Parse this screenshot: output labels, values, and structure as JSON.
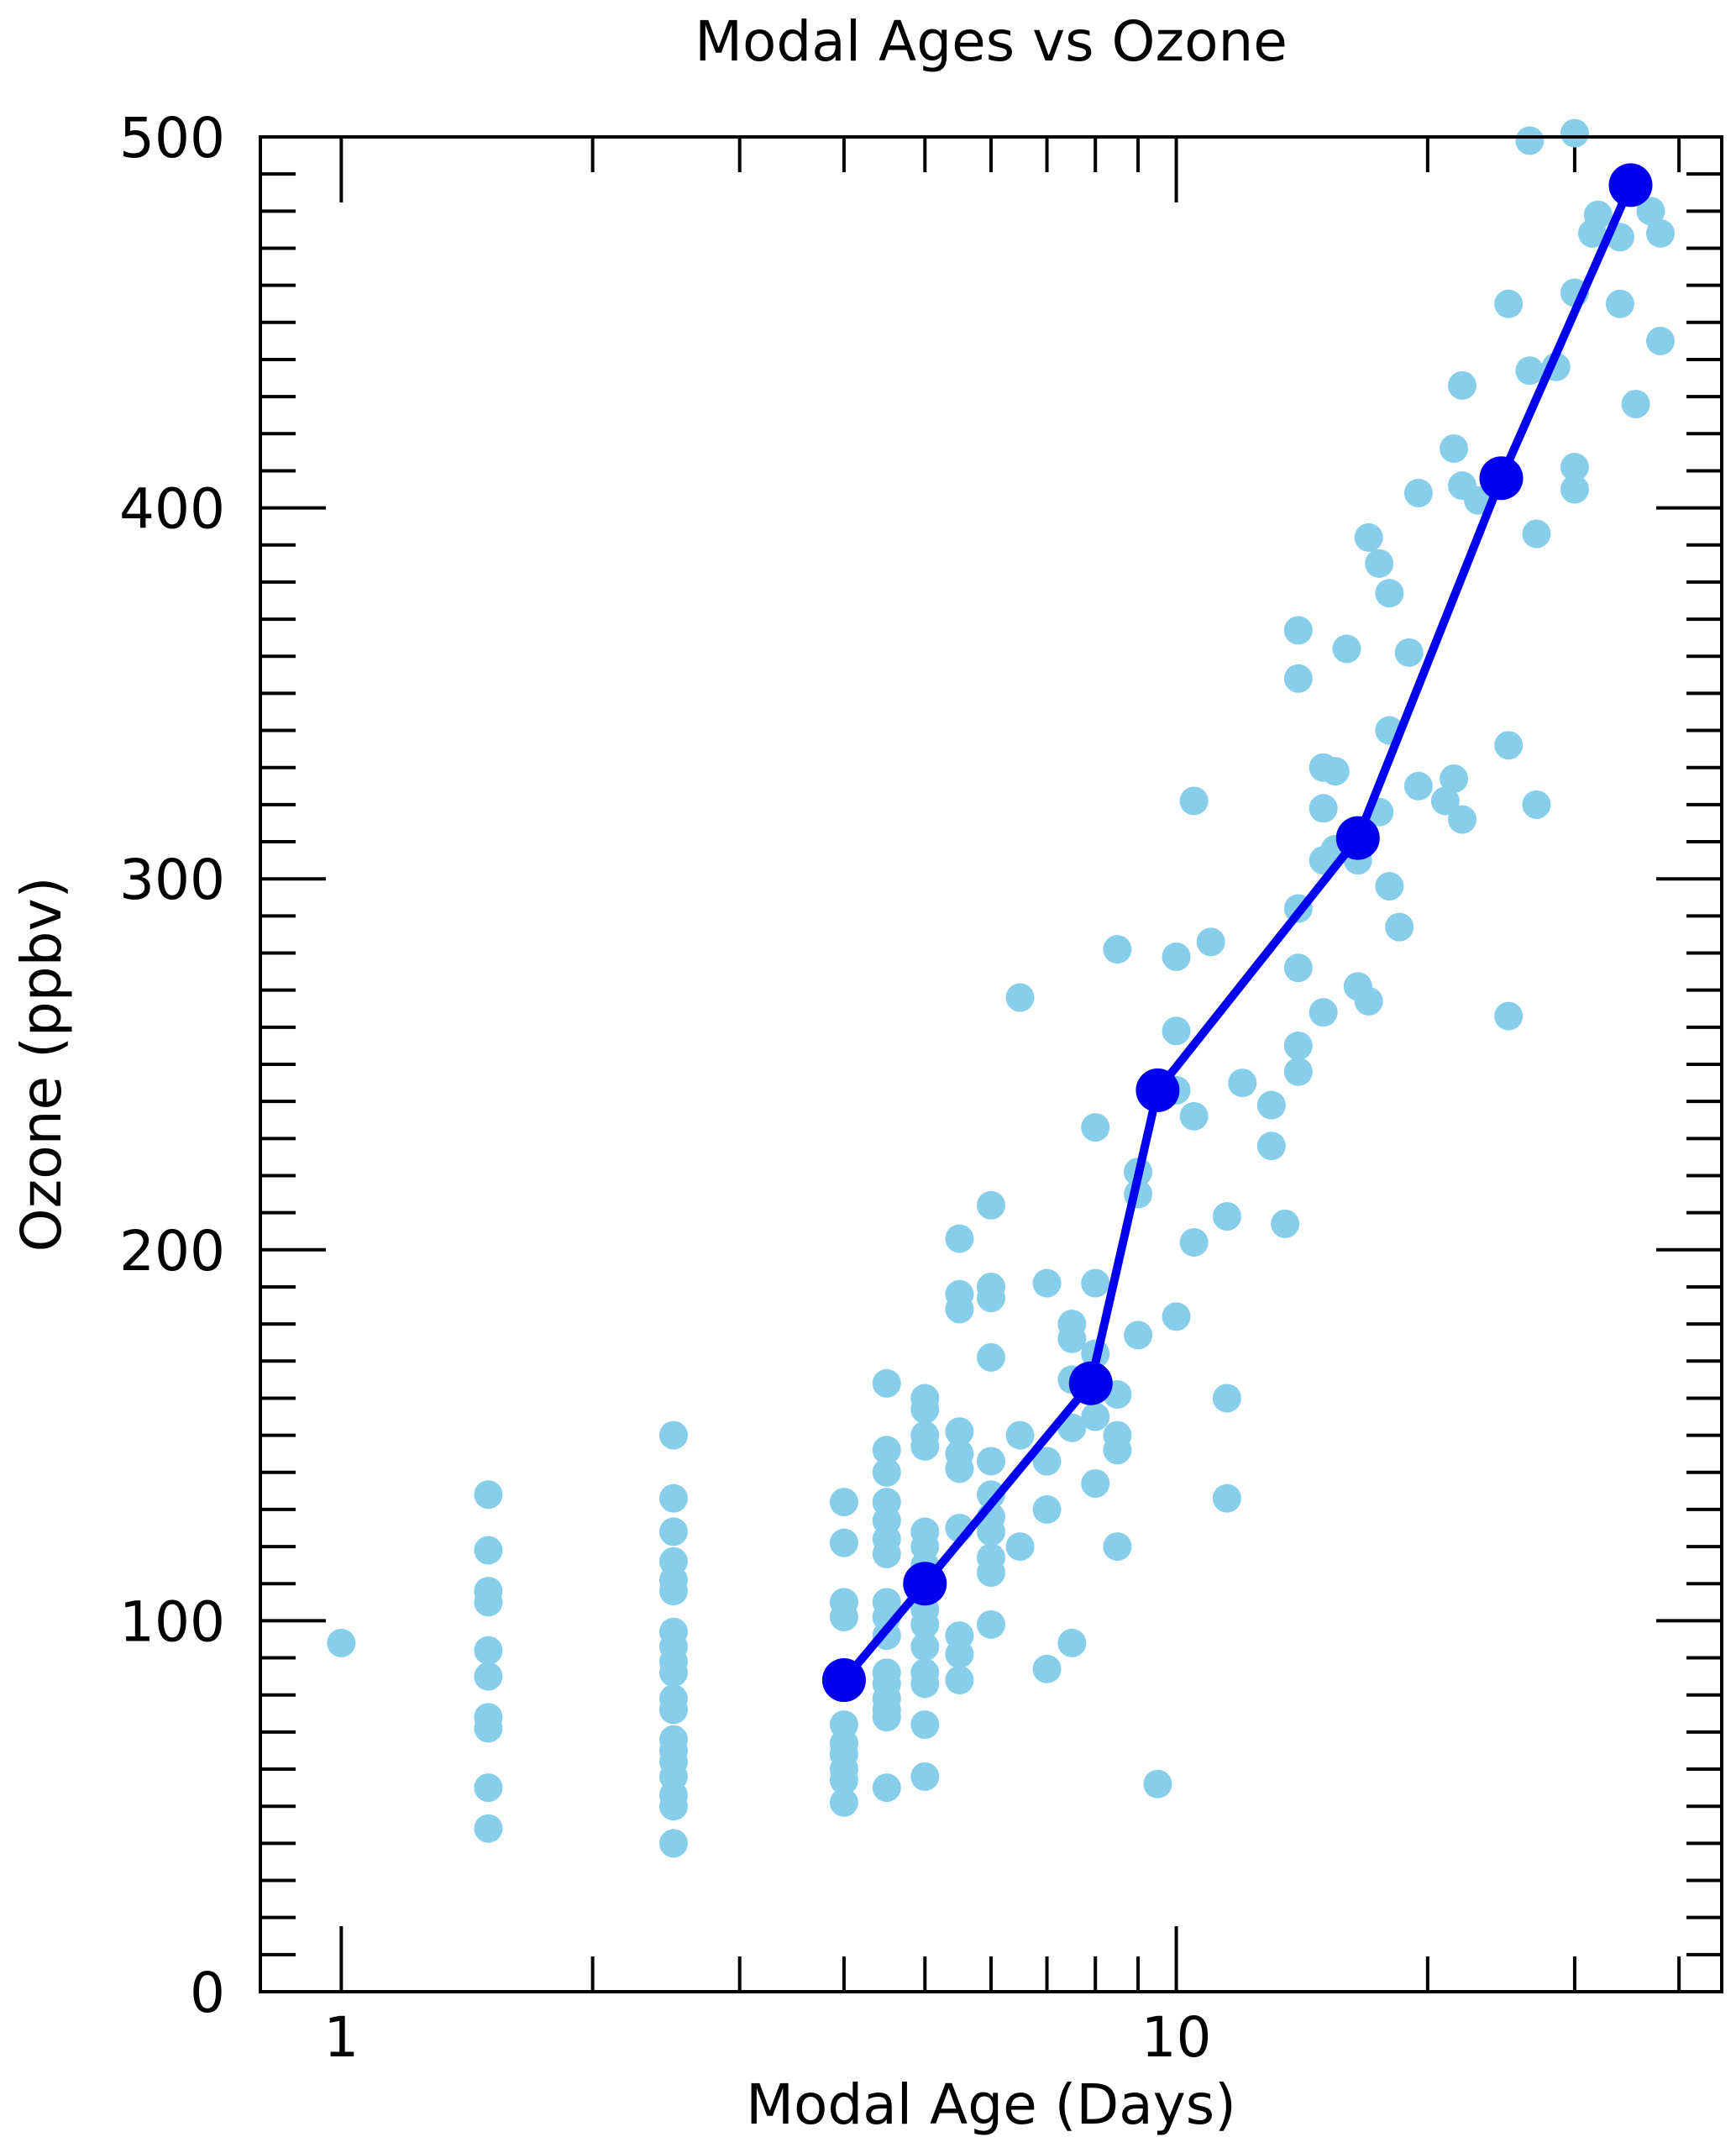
{
  "chart_data": {
    "type": "scatter",
    "title": "Modal Ages vs Ozone",
    "xlabel": "Modal Age (Days)",
    "ylabel": "Ozone (ppbv)",
    "x_scale": "log",
    "xlim": [
      0.8,
      45
    ],
    "ylim": [
      0,
      500
    ],
    "x_tick_labels": [
      {
        "value": 1,
        "label": "1"
      },
      {
        "value": 10,
        "label": "10"
      }
    ],
    "y_tick_labels": [
      {
        "value": 0,
        "label": "0"
      },
      {
        "value": 100,
        "label": "100"
      },
      {
        "value": 200,
        "label": "200"
      },
      {
        "value": 300,
        "label": "300"
      },
      {
        "value": 400,
        "label": "400"
      },
      {
        "value": 500,
        "label": "500"
      }
    ],
    "grid": false,
    "legend": "none",
    "colors": {
      "scatter": "#87ceeb",
      "line": "#0000ee",
      "axes": "#000000"
    },
    "series": [
      {
        "type": "scatter",
        "points": [
          [
            1.0,
            94
          ],
          [
            1.5,
            134
          ],
          [
            1.5,
            119
          ],
          [
            1.5,
            108
          ],
          [
            1.5,
            105
          ],
          [
            1.5,
            92
          ],
          [
            1.5,
            85
          ],
          [
            1.5,
            74
          ],
          [
            1.5,
            71
          ],
          [
            1.5,
            55
          ],
          [
            1.5,
            44
          ],
          [
            2.5,
            150
          ],
          [
            2.5,
            133
          ],
          [
            2.5,
            124
          ],
          [
            2.5,
            116
          ],
          [
            2.5,
            111
          ],
          [
            2.5,
            108
          ],
          [
            2.5,
            97
          ],
          [
            2.5,
            93
          ],
          [
            2.5,
            89
          ],
          [
            2.5,
            86
          ],
          [
            2.5,
            79
          ],
          [
            2.5,
            76
          ],
          [
            2.5,
            68
          ],
          [
            2.5,
            65
          ],
          [
            2.5,
            62
          ],
          [
            2.5,
            58
          ],
          [
            2.5,
            53
          ],
          [
            2.5,
            50
          ],
          [
            2.5,
            40
          ],
          [
            4.0,
            132
          ],
          [
            4.0,
            121
          ],
          [
            4.0,
            105
          ],
          [
            4.0,
            101
          ],
          [
            4.0,
            72
          ],
          [
            4.0,
            67
          ],
          [
            4.0,
            64
          ],
          [
            4.0,
            60
          ],
          [
            4.0,
            57
          ],
          [
            4.0,
            51
          ],
          [
            4.5,
            164
          ],
          [
            4.5,
            146
          ],
          [
            4.5,
            140
          ],
          [
            4.5,
            132
          ],
          [
            4.5,
            127
          ],
          [
            4.5,
            122
          ],
          [
            4.5,
            118
          ],
          [
            4.5,
            105
          ],
          [
            4.5,
            101
          ],
          [
            4.5,
            96
          ],
          [
            4.5,
            86
          ],
          [
            4.5,
            83
          ],
          [
            4.5,
            79
          ],
          [
            4.5,
            76
          ],
          [
            4.5,
            74
          ],
          [
            4.5,
            55
          ],
          [
            5.0,
            160
          ],
          [
            5.0,
            157
          ],
          [
            5.0,
            150
          ],
          [
            5.0,
            147
          ],
          [
            5.0,
            124
          ],
          [
            5.0,
            120
          ],
          [
            5.0,
            115
          ],
          [
            5.0,
            109
          ],
          [
            5.0,
            103
          ],
          [
            5.0,
            99
          ],
          [
            5.0,
            93
          ],
          [
            5.0,
            86
          ],
          [
            5.0,
            83
          ],
          [
            5.0,
            72
          ],
          [
            5.0,
            58
          ],
          [
            5.5,
            203
          ],
          [
            5.5,
            188
          ],
          [
            5.5,
            184
          ],
          [
            5.5,
            151
          ],
          [
            5.5,
            145
          ],
          [
            5.5,
            141
          ],
          [
            5.5,
            125
          ],
          [
            5.5,
            96
          ],
          [
            5.5,
            91
          ],
          [
            5.5,
            84
          ],
          [
            6.0,
            212
          ],
          [
            6.0,
            190
          ],
          [
            6.0,
            187
          ],
          [
            6.0,
            171
          ],
          [
            6.0,
            143
          ],
          [
            6.0,
            134
          ],
          [
            6.0,
            128
          ],
          [
            6.0,
            124
          ],
          [
            6.0,
            117
          ],
          [
            6.0,
            113
          ],
          [
            6.0,
            99
          ],
          [
            6.5,
            268
          ],
          [
            6.5,
            150
          ],
          [
            6.5,
            120
          ],
          [
            7.0,
            191
          ],
          [
            7.0,
            143
          ],
          [
            7.0,
            130
          ],
          [
            7.0,
            87
          ],
          [
            7.5,
            180
          ],
          [
            7.5,
            176
          ],
          [
            7.5,
            165
          ],
          [
            7.5,
            152
          ],
          [
            7.5,
            94
          ],
          [
            8.0,
            233
          ],
          [
            8.0,
            191
          ],
          [
            8.0,
            172
          ],
          [
            8.0,
            155
          ],
          [
            8.0,
            137
          ],
          [
            8.5,
            281
          ],
          [
            8.5,
            161
          ],
          [
            8.5,
            150
          ],
          [
            8.5,
            146
          ],
          [
            8.5,
            120
          ],
          [
            9.0,
            221
          ],
          [
            9.0,
            215
          ],
          [
            9.0,
            177
          ],
          [
            9.5,
            56
          ],
          [
            10.0,
            279
          ],
          [
            10.0,
            259
          ],
          [
            10.0,
            243
          ],
          [
            10.0,
            182
          ],
          [
            10.5,
            321
          ],
          [
            10.5,
            236
          ],
          [
            10.5,
            202
          ],
          [
            11.0,
            283
          ],
          [
            11.5,
            209
          ],
          [
            11.5,
            160
          ],
          [
            11.5,
            133
          ],
          [
            12.0,
            245
          ],
          [
            13.0,
            239
          ],
          [
            13.0,
            228
          ],
          [
            13.5,
            207
          ],
          [
            14.0,
            367
          ],
          [
            14.0,
            354
          ],
          [
            14.0,
            292
          ],
          [
            14.0,
            276
          ],
          [
            14.0,
            255
          ],
          [
            14.0,
            248
          ],
          [
            15.0,
            330
          ],
          [
            15.0,
            319
          ],
          [
            15.0,
            305
          ],
          [
            15.0,
            264
          ],
          [
            15.5,
            329
          ],
          [
            15.5,
            308
          ],
          [
            16.0,
            362
          ],
          [
            16.5,
            305
          ],
          [
            16.5,
            271
          ],
          [
            17.0,
            392
          ],
          [
            17.0,
            267
          ],
          [
            17.5,
            385
          ],
          [
            17.5,
            318
          ],
          [
            18.0,
            377
          ],
          [
            18.0,
            340
          ],
          [
            18.0,
            298
          ],
          [
            18.5,
            287
          ],
          [
            19.0,
            361
          ],
          [
            19.5,
            404
          ],
          [
            19.5,
            325
          ],
          [
            21.0,
            321
          ],
          [
            21.5,
            416
          ],
          [
            21.5,
            327
          ],
          [
            22.0,
            433
          ],
          [
            22.0,
            406
          ],
          [
            22.0,
            316
          ],
          [
            23.0,
            402
          ],
          [
            25.0,
            455
          ],
          [
            25.0,
            336
          ],
          [
            25.0,
            263
          ],
          [
            26.5,
            499
          ],
          [
            26.5,
            437
          ],
          [
            27.0,
            393
          ],
          [
            27.0,
            320
          ],
          [
            28.5,
            438
          ],
          [
            30.0,
            458
          ],
          [
            30.0,
            411
          ],
          [
            30.0,
            405
          ],
          [
            30.0,
            501
          ],
          [
            31.5,
            474
          ],
          [
            32.0,
            479
          ],
          [
            34.0,
            473
          ],
          [
            34.0,
            455
          ],
          [
            35.5,
            428
          ],
          [
            37.0,
            480
          ],
          [
            38.0,
            474
          ],
          [
            38.0,
            445
          ]
        ]
      },
      {
        "type": "line",
        "points": [
          [
            4.0,
            84
          ],
          [
            5.0,
            110
          ],
          [
            7.9,
            164
          ],
          [
            9.5,
            243
          ],
          [
            16.5,
            311
          ],
          [
            24.5,
            408
          ],
          [
            35.0,
            487
          ]
        ]
      }
    ]
  }
}
